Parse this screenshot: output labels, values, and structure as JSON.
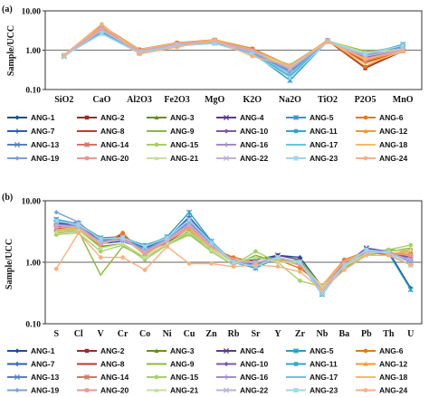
{
  "chart_data": [
    {
      "panel_label": "(a)",
      "type": "line",
      "ylabel": "Sample/UCC",
      "yscale": "log",
      "ylim": [
        0.1,
        10
      ],
      "yticks": [
        "10.00",
        "1.00",
        "0.10"
      ],
      "categories": [
        "SiO2",
        "CaO",
        "Al2O3",
        "Fe2O3",
        "MgO",
        "K2O",
        "Na2O",
        "TiO2",
        "P2O5",
        "MnO"
      ],
      "reference_line": 1,
      "legend_position": "bottom",
      "series": [
        {
          "name": "ANG-1",
          "values": [
            0.72,
            3.4,
            0.98,
            1.45,
            1.7,
            1.0,
            0.38,
            1.7,
            0.8,
            1.25
          ]
        },
        {
          "name": "ANG-2",
          "values": [
            0.74,
            3.6,
            1.0,
            1.5,
            1.75,
            1.05,
            0.35,
            1.75,
            0.35,
            0.95
          ]
        },
        {
          "name": "ANG-3",
          "values": [
            0.73,
            3.5,
            0.95,
            1.4,
            1.8,
            0.95,
            0.42,
            1.72,
            0.9,
            1.1
          ]
        },
        {
          "name": "ANG-4",
          "values": [
            0.7,
            3.3,
            0.9,
            1.35,
            1.7,
            0.9,
            0.32,
            1.68,
            0.7,
            1.05
          ]
        },
        {
          "name": "ANG-5",
          "values": [
            0.72,
            2.9,
            0.85,
            1.3,
            1.55,
            0.85,
            0.17,
            1.7,
            0.75,
            1.4
          ]
        },
        {
          "name": "ANG-6",
          "values": [
            0.75,
            4.2,
            1.05,
            1.55,
            1.85,
            1.1,
            0.4,
            1.8,
            0.38,
            1.0
          ]
        },
        {
          "name": "ANG-7",
          "values": [
            0.72,
            3.1,
            0.95,
            1.45,
            1.65,
            0.95,
            0.3,
            1.7,
            0.85,
            1.3
          ]
        },
        {
          "name": "ANG-8",
          "values": [
            0.73,
            3.8,
            1.0,
            1.5,
            1.8,
            1.0,
            0.36,
            1.75,
            0.5,
            0.9
          ]
        },
        {
          "name": "ANG-9",
          "values": [
            0.71,
            3.2,
            0.92,
            1.4,
            1.6,
            0.92,
            0.4,
            1.68,
            0.95,
            1.05
          ]
        },
        {
          "name": "ANG-10",
          "values": [
            0.72,
            3.5,
            0.96,
            1.42,
            1.72,
            0.98,
            0.34,
            1.71,
            0.65,
            1.0
          ]
        },
        {
          "name": "ANG-11",
          "values": [
            0.74,
            2.8,
            0.88,
            1.3,
            1.5,
            0.8,
            0.22,
            1.65,
            0.8,
            1.35
          ]
        },
        {
          "name": "ANG-12",
          "values": [
            0.73,
            3.9,
            1.02,
            1.48,
            1.78,
            1.02,
            0.37,
            1.74,
            0.55,
            0.95
          ]
        },
        {
          "name": "ANG-13",
          "values": [
            0.7,
            3.0,
            0.9,
            1.38,
            1.62,
            0.88,
            0.28,
            1.69,
            0.78,
            1.2
          ]
        },
        {
          "name": "ANG-14",
          "values": [
            0.72,
            3.7,
            0.99,
            1.47,
            1.76,
            1.01,
            0.33,
            1.73,
            0.6,
            0.98
          ]
        },
        {
          "name": "ANG-15",
          "values": [
            0.71,
            3.3,
            0.93,
            1.41,
            1.66,
            0.94,
            0.41,
            1.7,
            0.88,
            1.08
          ]
        },
        {
          "name": "ANG-16",
          "values": [
            0.72,
            3.4,
            0.94,
            1.43,
            1.69,
            0.96,
            0.36,
            1.71,
            0.72,
            1.02
          ]
        },
        {
          "name": "ANG-17",
          "values": [
            0.73,
            2.7,
            0.86,
            1.32,
            1.52,
            0.82,
            0.25,
            1.66,
            0.82,
            1.3
          ]
        },
        {
          "name": "ANG-18",
          "values": [
            0.74,
            4.0,
            1.03,
            1.52,
            1.82,
            1.04,
            0.39,
            1.76,
            0.45,
            0.92
          ]
        },
        {
          "name": "ANG-19",
          "values": [
            0.7,
            3.1,
            0.89,
            1.36,
            1.6,
            0.87,
            0.3,
            1.67,
            0.76,
            1.18
          ]
        },
        {
          "name": "ANG-20",
          "values": [
            0.73,
            3.6,
            0.97,
            1.46,
            1.74,
            0.99,
            0.35,
            1.72,
            0.62,
            0.97
          ]
        },
        {
          "name": "ANG-21",
          "values": [
            0.72,
            3.2,
            0.92,
            1.39,
            1.64,
            0.91,
            0.38,
            1.69,
            0.86,
            1.06
          ]
        },
        {
          "name": "ANG-22",
          "values": [
            0.71,
            3.3,
            0.93,
            1.4,
            1.67,
            0.93,
            0.33,
            1.7,
            0.7,
            1.03
          ]
        },
        {
          "name": "ANG-23",
          "values": [
            0.72,
            2.6,
            0.84,
            1.28,
            1.48,
            0.78,
            0.2,
            1.64,
            0.8,
            1.32
          ]
        },
        {
          "name": "ANG-24",
          "values": [
            0.76,
            4.6,
            0.8,
            1.2,
            1.8,
            0.7,
            0.4,
            1.6,
            0.6,
            0.95
          ]
        }
      ]
    },
    {
      "panel_label": "(b)",
      "type": "line",
      "ylabel": "Sample/UCC",
      "yscale": "log",
      "ylim": [
        0.1,
        10
      ],
      "yticks": [
        "10.00",
        "1.00",
        "0.10"
      ],
      "categories": [
        "S",
        "Cl",
        "V",
        "Cr",
        "Co",
        "Ni",
        "Cu",
        "Zn",
        "Rb",
        "Sr",
        "Y",
        "Zr",
        "Nb",
        "Ba",
        "Pb",
        "Th",
        "U"
      ],
      "reference_line": 1,
      "legend_position": "bottom",
      "series": [
        {
          "name": "ANG-1",
          "values": [
            4.0,
            4.5,
            2.0,
            2.2,
            1.6,
            2.4,
            4.5,
            2.0,
            1.0,
            1.1,
            1.3,
            1.2,
            0.4,
            0.9,
            1.6,
            1.5,
            0.38
          ]
        },
        {
          "name": "ANG-2",
          "values": [
            3.5,
            4.0,
            2.2,
            2.8,
            1.4,
            2.2,
            3.8,
            1.8,
            1.1,
            1.0,
            1.2,
            0.9,
            0.35,
            1.0,
            1.5,
            1.4,
            1.2
          ]
        },
        {
          "name": "ANG-3",
          "values": [
            3.0,
            3.5,
            1.8,
            2.0,
            1.2,
            2.0,
            3.2,
            1.6,
            1.0,
            1.2,
            1.1,
            1.0,
            0.38,
            0.8,
            1.4,
            1.6,
            1.5
          ]
        },
        {
          "name": "ANG-4",
          "values": [
            4.5,
            3.8,
            2.1,
            2.4,
            1.5,
            2.5,
            4.0,
            1.9,
            1.1,
            0.9,
            1.3,
            1.1,
            0.36,
            0.9,
            1.7,
            1.5,
            1.1
          ]
        },
        {
          "name": "ANG-5",
          "values": [
            5.0,
            4.2,
            2.5,
            2.6,
            1.8,
            2.6,
            6.5,
            2.2,
            1.0,
            0.8,
            1.2,
            1.0,
            0.3,
            0.9,
            1.6,
            1.4,
            0.36
          ]
        },
        {
          "name": "ANG-6",
          "values": [
            3.2,
            3.6,
            1.9,
            3.0,
            1.3,
            2.3,
            3.5,
            1.7,
            1.2,
            1.0,
            1.1,
            0.8,
            0.42,
            1.1,
            1.5,
            1.3,
            1.6
          ]
        },
        {
          "name": "ANG-7",
          "values": [
            4.2,
            4.4,
            2.3,
            2.5,
            1.7,
            2.4,
            5.5,
            2.1,
            1.0,
            0.9,
            1.2,
            1.0,
            0.33,
            0.95,
            1.6,
            1.5,
            1.0
          ]
        },
        {
          "name": "ANG-8",
          "values": [
            3.8,
            3.9,
            2.0,
            2.7,
            1.4,
            2.1,
            3.6,
            1.8,
            1.1,
            1.0,
            1.2,
            0.95,
            0.39,
            1.0,
            1.4,
            1.4,
            1.3
          ]
        },
        {
          "name": "ANG-9",
          "values": [
            3.0,
            3.2,
            0.62,
            1.8,
            1.2,
            1.9,
            3.0,
            1.5,
            0.9,
            1.3,
            1.0,
            1.1,
            0.4,
            0.8,
            1.3,
            1.5,
            1.7
          ]
        },
        {
          "name": "ANG-10",
          "values": [
            4.0,
            3.7,
            2.1,
            2.3,
            1.5,
            2.3,
            4.2,
            1.9,
            1.0,
            1.0,
            1.2,
            1.0,
            0.37,
            0.9,
            1.5,
            1.4,
            1.2
          ]
        },
        {
          "name": "ANG-11",
          "values": [
            4.6,
            4.1,
            2.4,
            2.5,
            1.9,
            2.5,
            5.0,
            2.1,
            1.0,
            0.85,
            1.2,
            1.0,
            0.31,
            0.9,
            1.6,
            1.4,
            0.9
          ]
        },
        {
          "name": "ANG-12",
          "values": [
            3.4,
            3.6,
            2.0,
            2.6,
            1.3,
            2.2,
            3.7,
            1.7,
            1.1,
            1.0,
            1.1,
            0.9,
            0.41,
            1.05,
            1.5,
            1.4,
            1.4
          ]
        },
        {
          "name": "ANG-13",
          "values": [
            4.4,
            4.3,
            2.3,
            2.4,
            1.6,
            2.4,
            5.2,
            2.0,
            1.0,
            0.9,
            1.2,
            1.0,
            0.32,
            0.9,
            1.6,
            1.5,
            1.0
          ]
        },
        {
          "name": "ANG-14",
          "values": [
            3.6,
            3.8,
            2.0,
            2.6,
            1.4,
            2.2,
            3.9,
            1.8,
            1.1,
            1.0,
            1.2,
            0.9,
            0.38,
            1.0,
            1.5,
            1.4,
            1.3
          ]
        },
        {
          "name": "ANG-15",
          "values": [
            2.8,
            3.0,
            1.5,
            1.9,
            1.1,
            1.9,
            2.8,
            1.5,
            0.9,
            1.5,
            1.0,
            0.5,
            0.4,
            0.85,
            1.3,
            1.6,
            1.9
          ]
        },
        {
          "name": "ANG-16",
          "values": [
            4.1,
            3.9,
            2.1,
            2.3,
            1.5,
            2.3,
            4.3,
            1.9,
            1.0,
            1.0,
            1.2,
            1.0,
            0.36,
            0.9,
            1.5,
            1.4,
            1.1
          ]
        },
        {
          "name": "ANG-17",
          "values": [
            4.8,
            4.0,
            2.4,
            2.5,
            1.8,
            2.5,
            4.8,
            2.1,
            1.0,
            0.85,
            1.2,
            1.0,
            0.3,
            0.9,
            1.6,
            1.4,
            0.9
          ]
        },
        {
          "name": "ANG-18",
          "values": [
            3.3,
            3.5,
            1.9,
            2.6,
            1.3,
            2.2,
            3.6,
            1.7,
            1.1,
            1.0,
            1.1,
            0.9,
            0.42,
            1.05,
            1.5,
            1.4,
            1.5
          ]
        },
        {
          "name": "ANG-19",
          "values": [
            6.5,
            4.5,
            2.2,
            2.4,
            1.6,
            2.4,
            4.6,
            2.0,
            1.0,
            0.9,
            1.2,
            1.0,
            0.33,
            0.9,
            1.6,
            1.5,
            1.0
          ]
        },
        {
          "name": "ANG-20",
          "values": [
            3.7,
            3.8,
            2.0,
            2.6,
            1.4,
            2.2,
            3.8,
            1.8,
            1.1,
            1.0,
            1.2,
            0.9,
            0.38,
            1.0,
            1.5,
            1.4,
            1.3
          ]
        },
        {
          "name": "ANG-21",
          "values": [
            3.1,
            3.3,
            1.7,
            2.0,
            1.2,
            2.0,
            3.1,
            1.6,
            1.0,
            1.2,
            1.0,
            1.0,
            0.39,
            0.85,
            1.4,
            1.5,
            1.6
          ]
        },
        {
          "name": "ANG-22",
          "values": [
            4.0,
            3.7,
            2.1,
            2.3,
            1.5,
            2.3,
            4.1,
            1.9,
            1.0,
            1.0,
            1.2,
            1.0,
            0.36,
            0.9,
            1.5,
            1.4,
            1.1
          ]
        },
        {
          "name": "ANG-23",
          "values": [
            4.7,
            4.1,
            2.4,
            2.5,
            1.8,
            2.5,
            4.9,
            2.1,
            1.0,
            0.85,
            1.2,
            1.0,
            0.31,
            0.9,
            1.6,
            1.4,
            0.9
          ]
        },
        {
          "name": "ANG-24",
          "values": [
            0.78,
            3.0,
            1.2,
            1.2,
            0.75,
            1.8,
            0.95,
            0.95,
            0.85,
            0.9,
            0.85,
            0.7,
            0.35,
            0.75,
            1.3,
            1.3,
            0.9
          ]
        }
      ]
    }
  ],
  "style": {
    "series_colors": [
      "#1f4e8c",
      "#9b2a2a",
      "#6b8e23",
      "#5b3b8c",
      "#2f9ac4",
      "#e07b1a",
      "#2a5fb0",
      "#c0392b",
      "#8cb640",
      "#7d5aa6",
      "#33a6c9",
      "#f39a2b",
      "#5a7fbf",
      "#d9736a",
      "#a8cf6a",
      "#a58cc9",
      "#6cc3e0",
      "#f6b96b",
      "#7f9fd6",
      "#e89a92",
      "#c5e09a",
      "#bfb1dd",
      "#9fd6ea",
      "#f5b183"
    ],
    "series_markers": [
      "diamond",
      "square",
      "triangle",
      "x",
      "star",
      "circle",
      "plus",
      "dash",
      "line",
      "diamond",
      "square",
      "triangle",
      "x",
      "star",
      "circle",
      "plus",
      "dash",
      "line",
      "diamond",
      "square",
      "triangle",
      "x",
      "star",
      "circle"
    ],
    "reference_line_color": "#808080",
    "axis_color": "#333333"
  }
}
